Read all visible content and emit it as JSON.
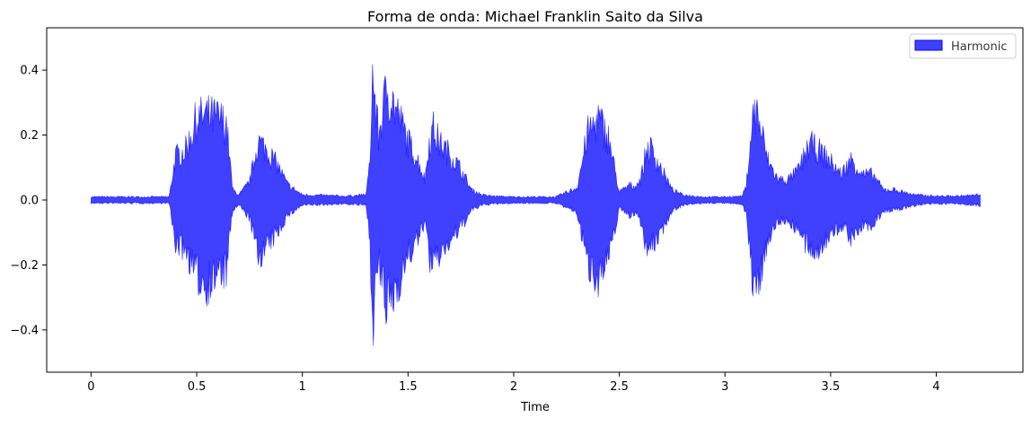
{
  "chart_data": {
    "type": "area",
    "title": "Forma de onda: Michael Franklin Saito da Silva",
    "xlabel": "Time",
    "ylabel": "",
    "xlim": [
      -0.21,
      4.41
    ],
    "ylim": [
      -0.53,
      0.53
    ],
    "x_ticks": [
      0,
      0.5,
      1,
      1.5,
      2,
      2.5,
      3,
      3.5,
      4
    ],
    "x_tick_labels": [
      "0",
      "0.5",
      "1",
      "1.5",
      "2",
      "2.5",
      "3",
      "3.5",
      "4"
    ],
    "y_ticks": [
      0.4,
      0.2,
      0.0,
      -0.2,
      -0.4
    ],
    "y_tick_labels": [
      "0.4",
      "0.2",
      "0.0",
      "−0.2",
      "−0.4"
    ],
    "grid": false,
    "legend": {
      "position": "top-right",
      "entries": [
        "Harmonic"
      ]
    },
    "series": [
      {
        "name": "Harmonic",
        "color": "#0000ff",
        "alpha": 0.75,
        "x": [
          0,
          0.37,
          0.38,
          0.4,
          0.45,
          0.5,
          0.55,
          0.6,
          0.64,
          0.67,
          0.7,
          0.75,
          0.79,
          0.83,
          0.88,
          0.93,
          1.0,
          1.1,
          1.2,
          1.3,
          1.32,
          1.33,
          1.34,
          1.36,
          1.4,
          1.45,
          1.5,
          1.55,
          1.58,
          1.6,
          1.62,
          1.65,
          1.7,
          1.75,
          1.8,
          1.85,
          1.9,
          2.0,
          2.1,
          2.2,
          2.28,
          2.3,
          2.35,
          2.4,
          2.45,
          2.5,
          2.55,
          2.57,
          2.6,
          2.63,
          2.65,
          2.7,
          2.75,
          2.8,
          2.9,
          3.0,
          3.08,
          3.1,
          3.13,
          3.15,
          3.18,
          3.2,
          3.25,
          3.3,
          3.35,
          3.4,
          3.45,
          3.5,
          3.55,
          3.6,
          3.65,
          3.7,
          3.75,
          3.8,
          3.9,
          4.0,
          4.1,
          4.2,
          4.21
        ],
        "y_max": [
          0.012,
          0.012,
          0.07,
          0.17,
          0.2,
          0.32,
          0.33,
          0.32,
          0.3,
          0.04,
          0.02,
          0.07,
          0.23,
          0.2,
          0.14,
          0.06,
          0.02,
          0.018,
          0.015,
          0.02,
          0.14,
          0.5,
          0.42,
          0.25,
          0.44,
          0.34,
          0.23,
          0.15,
          0.08,
          0.23,
          0.28,
          0.22,
          0.18,
          0.12,
          0.04,
          0.02,
          0.015,
          0.012,
          0.012,
          0.012,
          0.04,
          0.05,
          0.26,
          0.32,
          0.24,
          0.03,
          0.06,
          0.05,
          0.08,
          0.2,
          0.2,
          0.12,
          0.04,
          0.02,
          0.012,
          0.012,
          0.015,
          0.05,
          0.32,
          0.35,
          0.24,
          0.16,
          0.08,
          0.08,
          0.12,
          0.22,
          0.19,
          0.15,
          0.1,
          0.16,
          0.1,
          0.1,
          0.04,
          0.04,
          0.02,
          0.015,
          0.015,
          0.02,
          0.03
        ],
        "y_min": [
          -0.012,
          -0.012,
          -0.07,
          -0.17,
          -0.2,
          -0.3,
          -0.33,
          -0.29,
          -0.28,
          -0.04,
          -0.02,
          -0.07,
          -0.22,
          -0.19,
          -0.13,
          -0.06,
          -0.02,
          -0.018,
          -0.015,
          -0.02,
          -0.14,
          -0.5,
          -0.42,
          -0.25,
          -0.43,
          -0.33,
          -0.22,
          -0.15,
          -0.08,
          -0.22,
          -0.27,
          -0.21,
          -0.16,
          -0.11,
          -0.04,
          -0.02,
          -0.015,
          -0.012,
          -0.012,
          -0.012,
          -0.04,
          -0.05,
          -0.25,
          -0.3,
          -0.23,
          -0.03,
          -0.06,
          -0.05,
          -0.08,
          -0.19,
          -0.19,
          -0.12,
          -0.04,
          -0.02,
          -0.012,
          -0.012,
          -0.015,
          -0.05,
          -0.32,
          -0.35,
          -0.24,
          -0.16,
          -0.08,
          -0.08,
          -0.12,
          -0.21,
          -0.18,
          -0.14,
          -0.1,
          -0.15,
          -0.1,
          -0.1,
          -0.04,
          -0.04,
          -0.02,
          -0.015,
          -0.015,
          -0.02,
          -0.03
        ]
      }
    ]
  }
}
